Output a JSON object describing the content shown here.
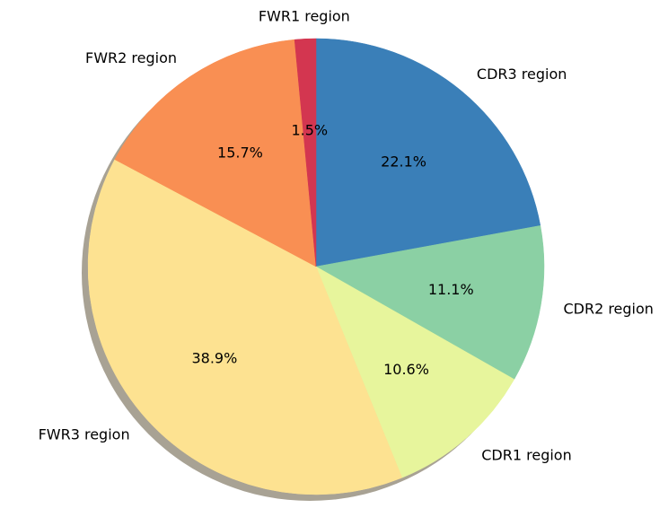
{
  "chart_data": {
    "type": "pie",
    "title": "",
    "start_angle_deg": 90,
    "direction": "clockwise",
    "shadow": true,
    "slices": [
      {
        "label": "CDR3 region",
        "value": 22.1,
        "pct_label": "22.1%",
        "color": "#3a7fb8"
      },
      {
        "label": "CDR2 region",
        "value": 11.1,
        "pct_label": "11.1%",
        "color": "#8bd0a4"
      },
      {
        "label": "CDR1 region",
        "value": 10.6,
        "pct_label": "10.6%",
        "color": "#e7f59c"
      },
      {
        "label": "FWR3 region",
        "value": 38.9,
        "pct_label": "38.9%",
        "color": "#fde291"
      },
      {
        "label": "FWR2 region",
        "value": 15.7,
        "pct_label": "15.7%",
        "color": "#f98f53"
      },
      {
        "label": "FWR1 region",
        "value": 1.5,
        "pct_label": "1.5%",
        "color": "#d33650"
      }
    ]
  }
}
